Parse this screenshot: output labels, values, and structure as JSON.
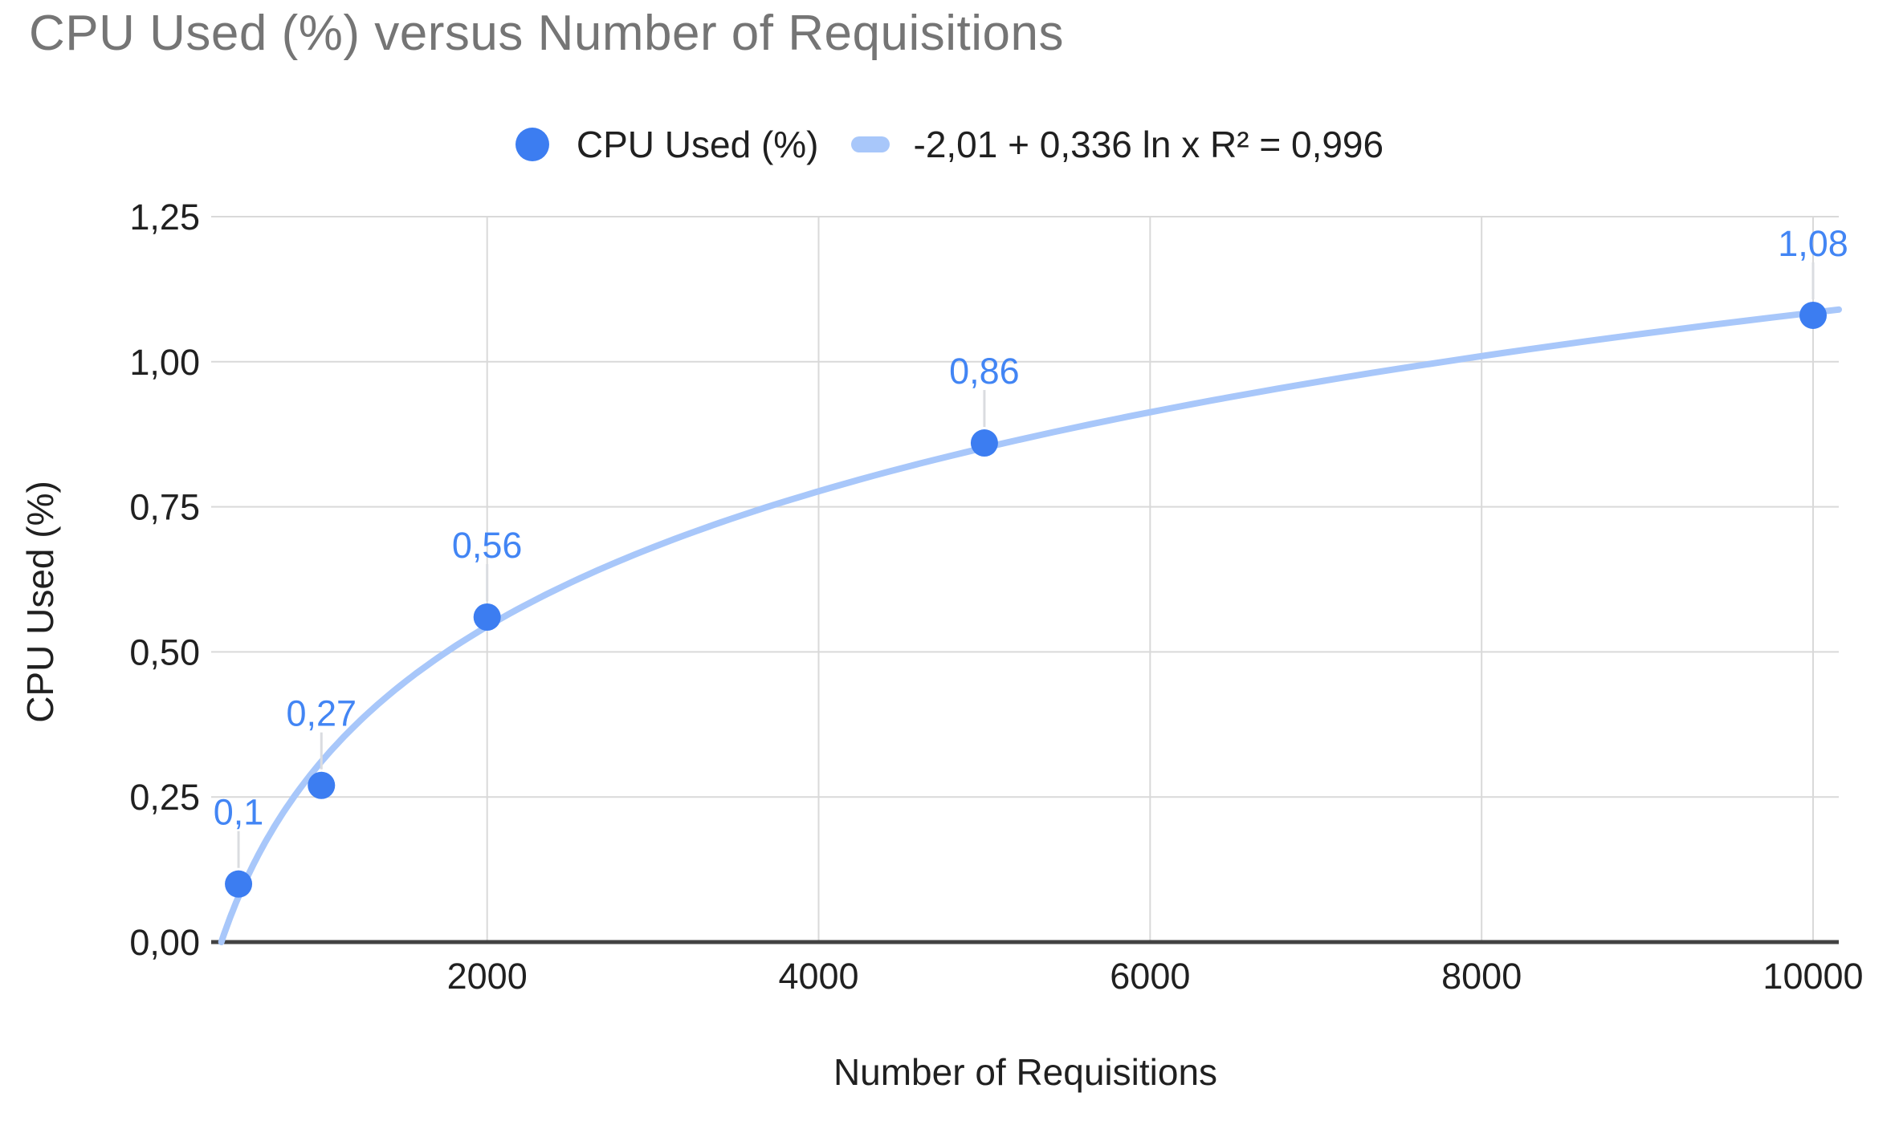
{
  "chart_data": {
    "type": "scatter",
    "title": "CPU Used (%) versus Number of Requisitions",
    "xlabel": "Number of Requisitions",
    "ylabel": "CPU Used (%)",
    "legend_position": "top-center",
    "grid": true,
    "decimal_separator": "comma",
    "x_axis": {
      "range": [
        335,
        10155
      ],
      "ticks": [
        {
          "value": 2000,
          "label": "2000"
        },
        {
          "value": 4000,
          "label": "4000"
        },
        {
          "value": 6000,
          "label": "6000"
        },
        {
          "value": 8000,
          "label": "8000"
        },
        {
          "value": 10000,
          "label": "10000"
        }
      ]
    },
    "y_axis": {
      "range": [
        0,
        1.25
      ],
      "ticks": [
        {
          "value": 0.0,
          "label": "0,00"
        },
        {
          "value": 0.25,
          "label": "0,25"
        },
        {
          "value": 0.5,
          "label": "0,50"
        },
        {
          "value": 0.75,
          "label": "0,75"
        },
        {
          "value": 1.0,
          "label": "1,00"
        },
        {
          "value": 1.25,
          "label": "1,25"
        }
      ]
    },
    "series": [
      {
        "name": "CPU Used (%)",
        "points": [
          {
            "x": 500,
            "y": 0.1,
            "label": "0,1"
          },
          {
            "x": 1000,
            "y": 0.27,
            "label": "0,27"
          },
          {
            "x": 2000,
            "y": 0.56,
            "label": "0,56"
          },
          {
            "x": 5000,
            "y": 0.86,
            "label": "0,86"
          },
          {
            "x": 10000,
            "y": 1.08,
            "label": "1,08"
          }
        ]
      }
    ],
    "trendline": {
      "type": "logarithmic",
      "equation_label": "-2,01 + 0,336 ln x R² = 0,996",
      "intercept": -2.01,
      "coefficient": 0.336,
      "r_squared": 0.996
    },
    "colors": {
      "point": "#3c7df1",
      "point_label": "#4285f4",
      "trendline": "#a8c7fa",
      "gridline": "#d9d9d9",
      "axis_line": "#424242",
      "tick_text": "#202020",
      "title_text": "#757575",
      "leader_line": "#dadce0"
    }
  }
}
